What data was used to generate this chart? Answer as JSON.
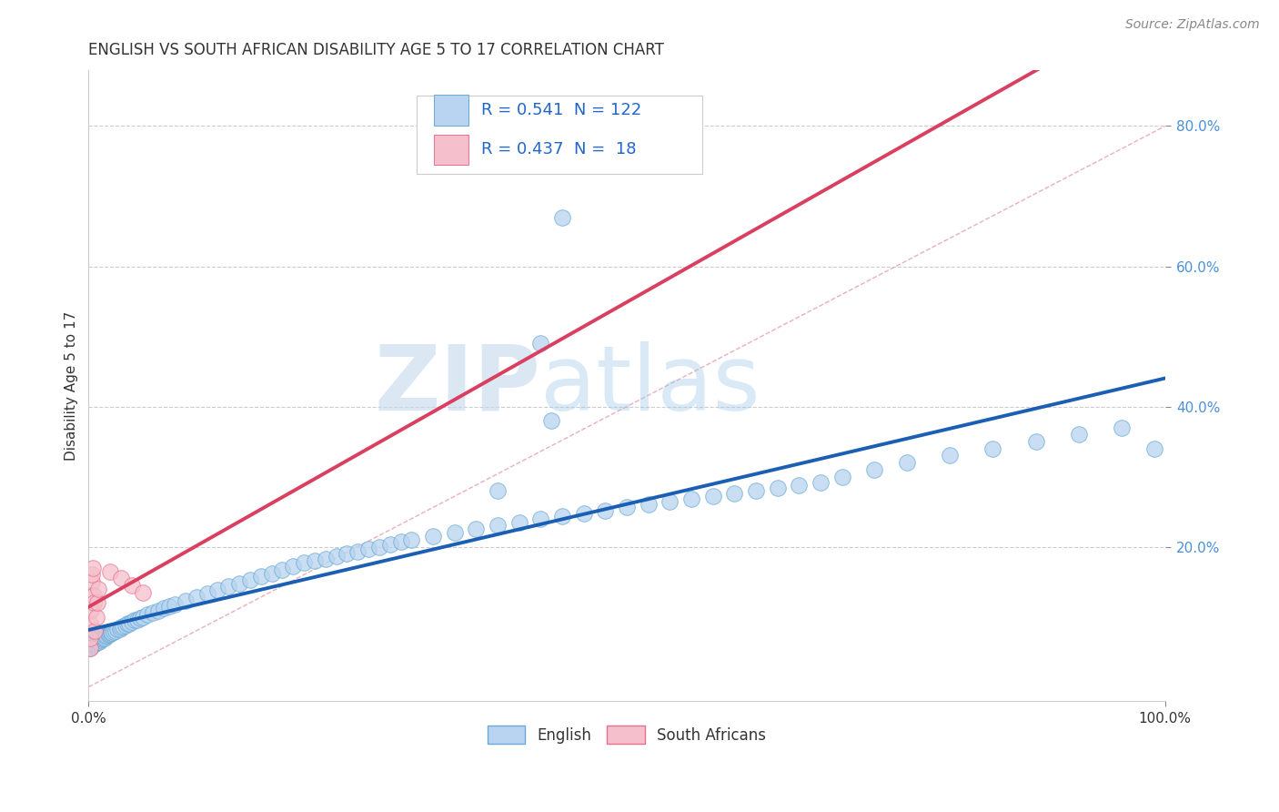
{
  "title": "ENGLISH VS SOUTH AFRICAN DISABILITY AGE 5 TO 17 CORRELATION CHART",
  "source": "Source: ZipAtlas.com",
  "ylabel": "Disability Age 5 to 17",
  "legend_english": {
    "R": 0.541,
    "N": 122
  },
  "legend_sa": {
    "R": 0.437,
    "N": 18
  },
  "english_scatter_color": "#b8d4f0",
  "english_scatter_edge": "#6aaad4",
  "sa_scatter_color": "#f5c0cb",
  "sa_scatter_edge": "#e87090",
  "regression_english_color": "#1a5fb4",
  "regression_sa_color": "#d94060",
  "diagonal_color": "#e8b0bc",
  "diagonal_style": "--",
  "background_color": "#ffffff",
  "grid_color": "#cccccc",
  "tick_color": "#4a90d9",
  "title_color": "#333333",
  "ylabel_color": "#333333",
  "source_color": "#888888",
  "watermark_color": "#c8d8ec",
  "yaxis_ticks": [
    "80.0%",
    "60.0%",
    "40.0%",
    "20.0%"
  ],
  "yaxis_values": [
    0.8,
    0.6,
    0.4,
    0.2
  ],
  "xlim": [
    0,
    1.0
  ],
  "ylim": [
    -0.02,
    0.88
  ],
  "english_x": [
    0.001,
    0.001,
    0.001,
    0.001,
    0.001,
    0.002,
    0.002,
    0.002,
    0.002,
    0.003,
    0.003,
    0.003,
    0.003,
    0.004,
    0.004,
    0.004,
    0.005,
    0.005,
    0.005,
    0.006,
    0.006,
    0.006,
    0.007,
    0.007,
    0.007,
    0.008,
    0.008,
    0.009,
    0.009,
    0.01,
    0.01,
    0.01,
    0.011,
    0.011,
    0.012,
    0.012,
    0.013,
    0.013,
    0.014,
    0.015,
    0.015,
    0.016,
    0.017,
    0.018,
    0.019,
    0.02,
    0.021,
    0.022,
    0.023,
    0.025,
    0.027,
    0.029,
    0.03,
    0.032,
    0.034,
    0.036,
    0.038,
    0.04,
    0.043,
    0.045,
    0.048,
    0.05,
    0.055,
    0.06,
    0.065,
    0.07,
    0.075,
    0.08,
    0.09,
    0.1,
    0.11,
    0.12,
    0.13,
    0.14,
    0.15,
    0.16,
    0.17,
    0.18,
    0.19,
    0.2,
    0.21,
    0.22,
    0.23,
    0.24,
    0.25,
    0.26,
    0.27,
    0.28,
    0.29,
    0.3,
    0.32,
    0.34,
    0.36,
    0.38,
    0.4,
    0.42,
    0.44,
    0.46,
    0.48,
    0.5,
    0.52,
    0.54,
    0.56,
    0.58,
    0.6,
    0.62,
    0.64,
    0.66,
    0.68,
    0.7,
    0.73,
    0.76,
    0.8,
    0.84,
    0.88,
    0.92,
    0.96,
    0.99,
    0.38,
    0.42,
    0.43,
    0.44
  ],
  "english_y": [
    0.055,
    0.06,
    0.065,
    0.07,
    0.075,
    0.058,
    0.063,
    0.068,
    0.073,
    0.06,
    0.065,
    0.07,
    0.075,
    0.062,
    0.067,
    0.072,
    0.06,
    0.065,
    0.07,
    0.062,
    0.067,
    0.072,
    0.063,
    0.068,
    0.073,
    0.065,
    0.07,
    0.066,
    0.071,
    0.065,
    0.07,
    0.075,
    0.067,
    0.072,
    0.068,
    0.073,
    0.07,
    0.075,
    0.071,
    0.07,
    0.075,
    0.072,
    0.073,
    0.075,
    0.075,
    0.076,
    0.077,
    0.078,
    0.079,
    0.08,
    0.082,
    0.083,
    0.085,
    0.086,
    0.088,
    0.09,
    0.091,
    0.093,
    0.095,
    0.096,
    0.098,
    0.1,
    0.103,
    0.106,
    0.109,
    0.112,
    0.115,
    0.118,
    0.123,
    0.128,
    0.133,
    0.138,
    0.143,
    0.148,
    0.153,
    0.158,
    0.162,
    0.167,
    0.172,
    0.177,
    0.18,
    0.183,
    0.187,
    0.19,
    0.193,
    0.197,
    0.2,
    0.203,
    0.207,
    0.21,
    0.215,
    0.22,
    0.225,
    0.23,
    0.235,
    0.24,
    0.244,
    0.248,
    0.252,
    0.256,
    0.26,
    0.264,
    0.268,
    0.272,
    0.276,
    0.28,
    0.284,
    0.288,
    0.292,
    0.3,
    0.31,
    0.32,
    0.33,
    0.34,
    0.35,
    0.36,
    0.37,
    0.34,
    0.28,
    0.49,
    0.38,
    0.67
  ],
  "sa_x": [
    0.001,
    0.001,
    0.001,
    0.002,
    0.002,
    0.003,
    0.003,
    0.004,
    0.005,
    0.005,
    0.006,
    0.007,
    0.008,
    0.009,
    0.02,
    0.03,
    0.04,
    0.05
  ],
  "sa_y": [
    0.055,
    0.07,
    0.09,
    0.11,
    0.13,
    0.15,
    0.16,
    0.17,
    0.13,
    0.12,
    0.08,
    0.1,
    0.12,
    0.14,
    0.165,
    0.155,
    0.145,
    0.135
  ],
  "title_fontsize": 12,
  "axis_label_fontsize": 11,
  "tick_fontsize": 11,
  "legend_fontsize": 13,
  "source_fontsize": 10
}
